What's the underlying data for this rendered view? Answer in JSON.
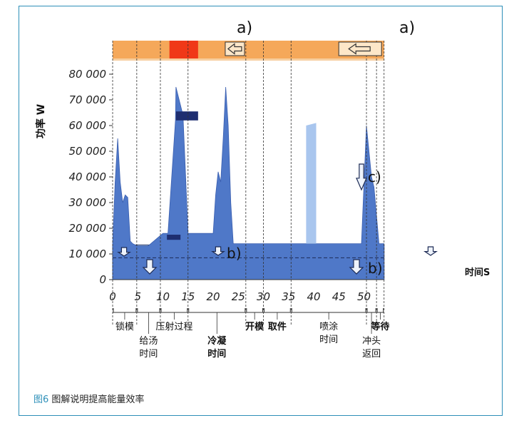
{
  "caption": {
    "figure_no": "图6",
    "text": "图解说明提高能量效率"
  },
  "chart_data": {
    "type": "area",
    "ylabel": "功率 W",
    "xlabel": "时间S",
    "xlim": [
      0,
      54
    ],
    "ylim": [
      0,
      80000
    ],
    "x_ticks": [
      "0",
      "5",
      "10",
      "15",
      "20",
      "25",
      "30",
      "35",
      "40",
      "45",
      "50"
    ],
    "y_ticks": [
      "0",
      "10 000",
      "20 000",
      "30 000",
      "40 000",
      "50 000",
      "60 000",
      "70 000",
      "80 000"
    ],
    "series": [
      {
        "x": [
          0,
          0.5,
          1,
          1.5,
          2,
          2.5,
          3,
          3.5,
          4,
          5,
          7,
          10,
          11,
          12.5,
          12.6,
          14,
          15,
          20,
          20.5,
          21,
          21.5,
          22,
          22.5,
          23,
          23.5,
          24,
          25,
          28,
          34,
          39.5,
          40,
          40.5,
          41,
          45,
          49.5,
          50.5,
          51.5,
          52,
          53,
          54
        ],
        "y": [
          14000,
          38000,
          55000,
          38000,
          30000,
          33000,
          32000,
          15000,
          14000,
          13000,
          13000,
          18000,
          18000,
          62000,
          75000,
          64000,
          18000,
          18000,
          33000,
          42000,
          38000,
          55000,
          75000,
          60000,
          30000,
          14000,
          14000,
          14000,
          14000,
          14000,
          14000,
          14000,
          14000,
          14000,
          14000,
          60000,
          40000,
          36000,
          14000,
          14000
        ]
      },
      {
        "x": [
          38.5,
          38.5,
          40.5,
          40.5
        ],
        "y": [
          14000,
          60000,
          61000,
          14000
        ]
      }
    ],
    "phases": [
      {
        "label": "锁模",
        "x0": 0,
        "x1": 4.8
      },
      {
        "label": "给汤\n时间",
        "x0": 4.8,
        "x1": 9.5
      },
      {
        "label": "压射过程",
        "x0": 9.5,
        "x1": 15
      },
      {
        "label": "冷凝\n时间",
        "x0": 15,
        "x1": 26.5
      },
      {
        "label": "开模",
        "x0": 26.5,
        "x1": 30
      },
      {
        "label": "取件",
        "x0": 30,
        "x1": 35.5
      },
      {
        "label": "喷涂\n时间",
        "x0": 35.5,
        "x1": 50.5
      },
      {
        "label": "冲头\n返回",
        "x0": 50.5,
        "x1": 52.5
      },
      {
        "label": "等待",
        "x0": 52.5,
        "x1": 54
      }
    ],
    "annotations": [
      "a)",
      "a)",
      "b)",
      "b)",
      "c)"
    ],
    "colors": {
      "area": "#4f78c8",
      "area_dark": "#1e2e70",
      "spray": "#a9c6ee",
      "band": "#9cbbe8",
      "band_dark": "#3f6ac0",
      "top_bar": "#f5a85a",
      "top_bar_red": "#f03818",
      "frame": "#2d8fb8"
    }
  }
}
